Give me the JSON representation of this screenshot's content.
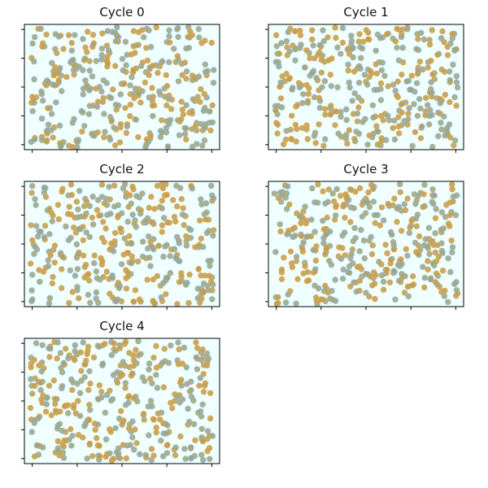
{
  "figure": {
    "background": "#ffffff",
    "axes_background": "#f0ffff",
    "point_face_color": "#b0a060",
    "point_edge_color_a": "#7fb3d5",
    "point_edge_color_b": "#e6a23c",
    "tick_labels_visible": false
  },
  "chart_data": [
    {
      "type": "scatter",
      "title": "Cycle 0",
      "xlabel": "",
      "ylabel": "",
      "xlim": [
        0,
        1
      ],
      "ylim": [
        0,
        1
      ],
      "grid": false,
      "seed": 11
    },
    {
      "type": "scatter",
      "title": "Cycle 1",
      "xlabel": "",
      "ylabel": "",
      "xlim": [
        0,
        1
      ],
      "ylim": [
        0,
        1
      ],
      "grid": false,
      "seed": 23
    },
    {
      "type": "scatter",
      "title": "Cycle 2",
      "xlabel": "",
      "ylabel": "",
      "xlim": [
        0,
        1
      ],
      "ylim": [
        0,
        1
      ],
      "grid": false,
      "seed": 37
    },
    {
      "type": "scatter",
      "title": "Cycle 3",
      "xlabel": "",
      "ylabel": "",
      "xlim": [
        0,
        1
      ],
      "ylim": [
        0,
        1
      ],
      "grid": false,
      "seed": 41
    },
    {
      "type": "scatter",
      "title": "Cycle 4",
      "xlabel": "",
      "ylabel": "",
      "xlim": [
        0,
        1
      ],
      "ylim": [
        0,
        1
      ],
      "grid": false,
      "seed": 53
    }
  ]
}
